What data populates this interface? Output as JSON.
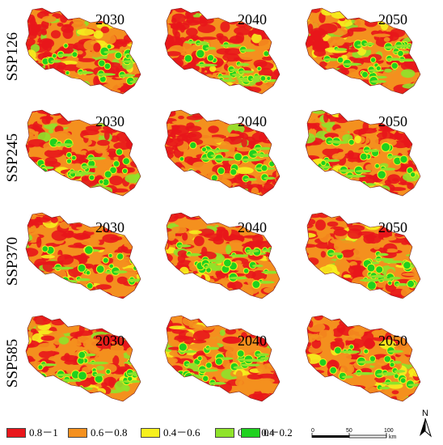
{
  "rows": [
    {
      "scenario": "SSP126",
      "years": [
        "2030",
        "2040",
        "2050"
      ]
    },
    {
      "scenario": "SSP245",
      "years": [
        "2030",
        "2040",
        "2050"
      ]
    },
    {
      "scenario": "SSP370",
      "years": [
        "2030",
        "2040",
        "2050"
      ]
    },
    {
      "scenario": "SSP585",
      "years": [
        "2030",
        "2040",
        "2050"
      ]
    }
  ],
  "legend": [
    {
      "label": "0.8－1",
      "color": "#e8161b"
    },
    {
      "label": "0.6－0.8",
      "color": "#f4901e"
    },
    {
      "label": "0.4－0.6",
      "color": "#f6f01d"
    },
    {
      "label": "0.2－0.4",
      "color": "#8fe32a"
    },
    {
      "label": "0－0.2",
      "color": "#1fd11f"
    }
  ],
  "scale_bar": {
    "ticks": [
      "0",
      "50",
      "100"
    ],
    "unit": "km"
  },
  "north_arrow": {
    "label": "N",
    "icon": "north-arrow-icon"
  }
}
